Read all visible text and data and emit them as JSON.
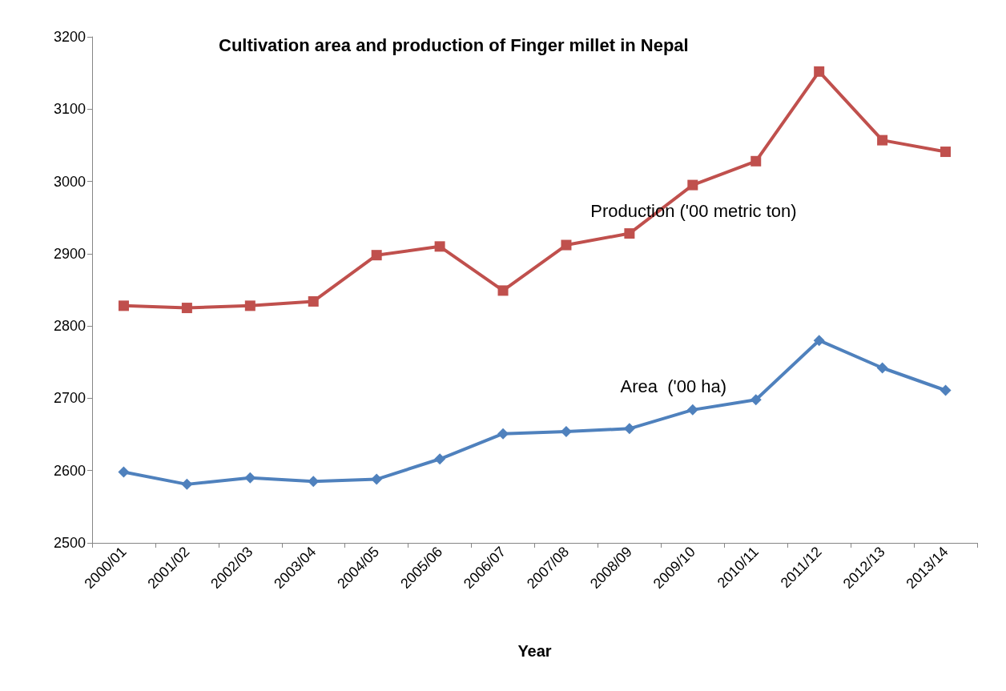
{
  "chart_data": {
    "type": "line",
    "title": "Cultivation area and production of Finger millet in Nepal",
    "xlabel": "Year",
    "categories": [
      "2000/01",
      "2001/02",
      "2002/03",
      "2003/04",
      "2004/05",
      "2005/06",
      "2006/07",
      "2007/08",
      "2008/09",
      "2009/10",
      "2010/11",
      "2011/12",
      "2012/13",
      "2013/14"
    ],
    "series": [
      {
        "name": "Production ('00 metric ton)",
        "color": "#c0504d",
        "marker": "square",
        "values": [
          2828,
          2825,
          2828,
          2834,
          2898,
          2910,
          2849,
          2912,
          2928,
          2995,
          3028,
          3152,
          3057,
          3041
        ]
      },
      {
        "name": "Area  ('00 ha)",
        "color": "#4f81bd",
        "marker": "diamond",
        "values": [
          2598,
          2581,
          2590,
          2585,
          2588,
          2616,
          2651,
          2654,
          2658,
          2684,
          2698,
          2780,
          2742,
          2711
        ]
      }
    ],
    "ylim": [
      2500,
      3200
    ],
    "yticks": [
      2500,
      2600,
      2700,
      2800,
      2900,
      3000,
      3100,
      3200
    ],
    "grid": false,
    "legend": false
  }
}
